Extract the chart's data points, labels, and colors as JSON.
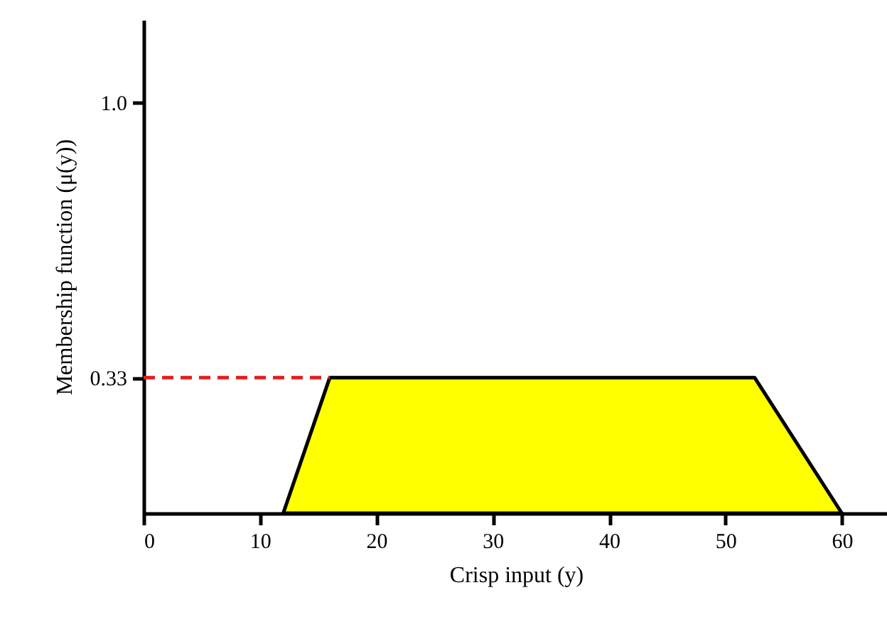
{
  "chart_data": {
    "type": "area",
    "xlabel": "Crisp input (y)",
    "ylabel": "Membership function (μ(y))",
    "xlim": [
      0,
      64
    ],
    "ylim": [
      0,
      1.2
    ],
    "xticks": [
      0,
      10,
      20,
      30,
      40,
      50,
      60
    ],
    "yticks": [
      0.33,
      {
        "value": 1,
        "label": "1.0"
      }
    ],
    "grid": false,
    "series": [
      {
        "color": "#ffff00",
        "x": [
          12,
          16,
          52.5,
          60
        ],
        "values": [
          0,
          0.33,
          0.33,
          0
        ]
      },
      {
        "type": "line",
        "color": "#e02020",
        "line_style": "dashed",
        "x": [
          0,
          16
        ],
        "values": [
          0.33,
          0.33
        ]
      }
    ]
  }
}
